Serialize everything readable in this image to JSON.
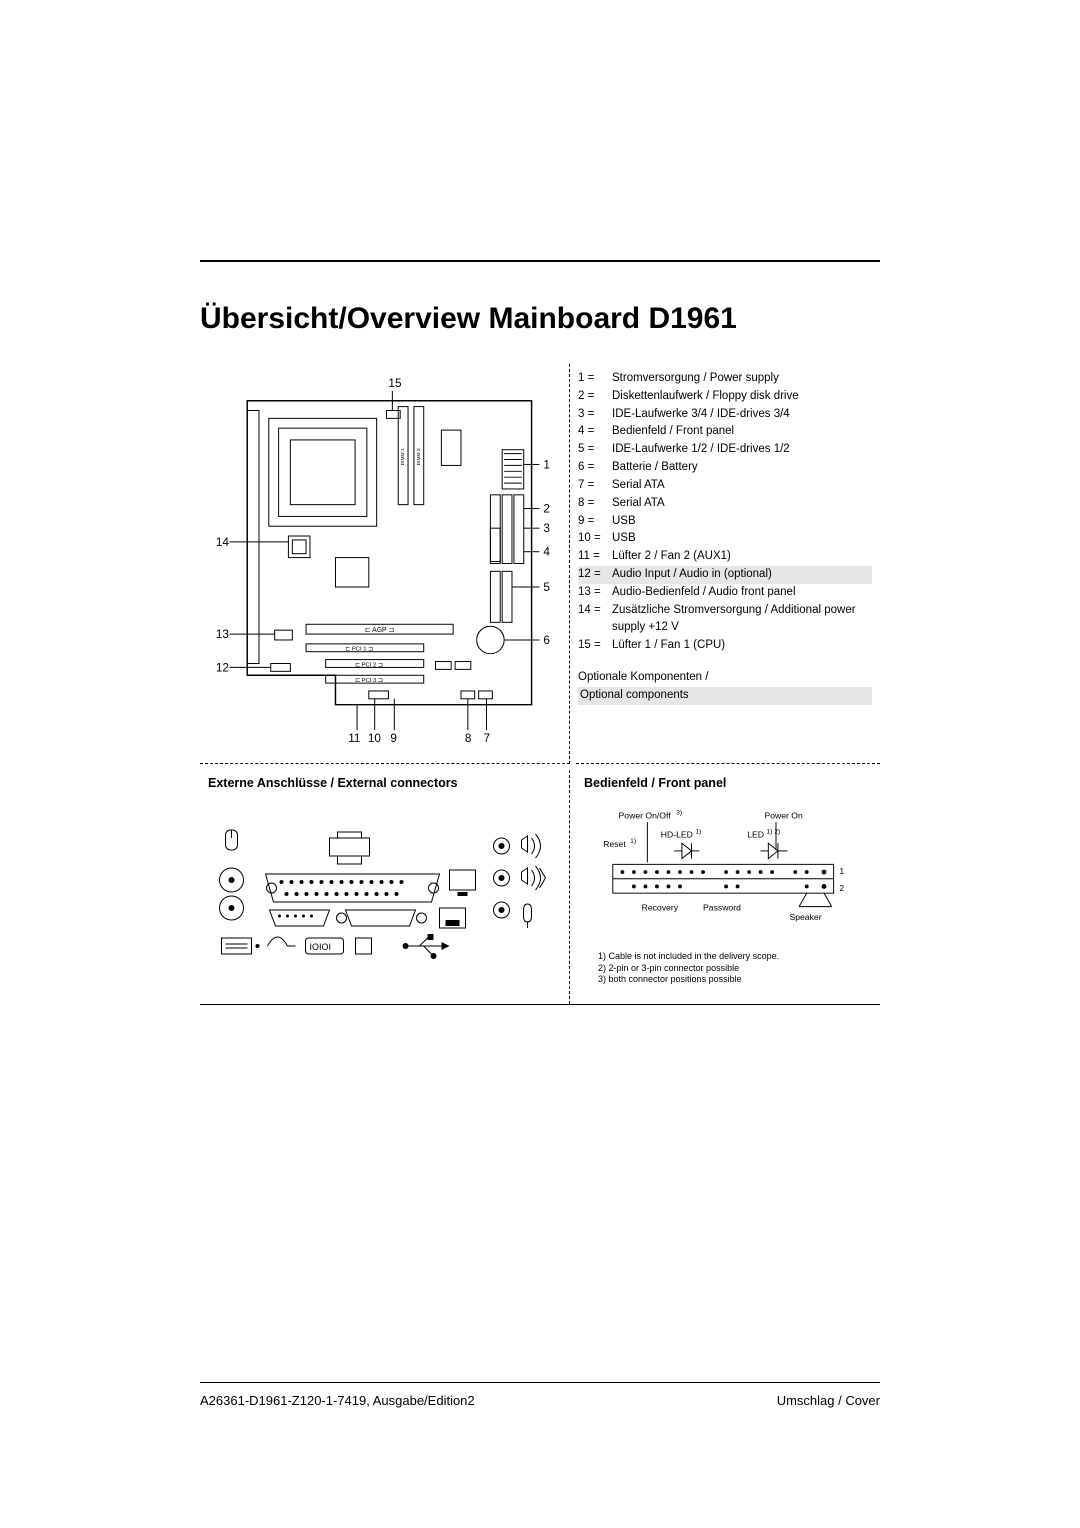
{
  "title": "Übersicht/Overview Mainboard D1961",
  "schematic": {
    "callouts_top": "15",
    "callouts_right": [
      "1",
      "2",
      "3",
      "4",
      "5",
      "6"
    ],
    "callouts_left": [
      "14",
      "13",
      "12"
    ],
    "callouts_bottom": [
      "11",
      "10",
      "9",
      "8",
      "7"
    ],
    "slot_labels": [
      "AGP",
      "PCI 1",
      "PCI 2",
      "PCI 3"
    ],
    "dimm_labels": [
      "D I M M 1",
      "D I M M 2"
    ]
  },
  "legend": [
    {
      "n": "1 =",
      "t": "Stromversorgung / Power supply"
    },
    {
      "n": "2 =",
      "t": "Diskettenlaufwerk / Floppy disk drive"
    },
    {
      "n": "3 =",
      "t": "IDE-Laufwerke 3/4 / IDE-drives 3/4"
    },
    {
      "n": "4 =",
      "t": "Bedienfeld / Front panel"
    },
    {
      "n": "5 =",
      "t": "IDE-Laufwerke 1/2 / IDE-drives 1/2"
    },
    {
      "n": "6 =",
      "t": "Batterie / Battery"
    },
    {
      "n": "7 =",
      "t": "Serial ATA"
    },
    {
      "n": "8 =",
      "t": "Serial ATA"
    },
    {
      "n": "9 =",
      "t": "USB"
    },
    {
      "n": "10 =",
      "t": "USB"
    },
    {
      "n": "11 =",
      "t": "Lüfter 2 / Fan 2 (AUX1)"
    },
    {
      "n": "12 =",
      "t": "Audio Input / Audio in (optional)",
      "shade": true
    },
    {
      "n": "13 =",
      "t": "Audio-Bedienfeld / Audio front panel"
    },
    {
      "n": "14 =",
      "t": "Zusätzliche Stromversorgung / Additional power supply +12 V"
    },
    {
      "n": "15 =",
      "t": "Lüfter 1 / Fan 1 (CPU)"
    }
  ],
  "optional": {
    "line1": "Optionale Komponenten /",
    "line2": "Optional components"
  },
  "external_head": "Externe Anschlüsse / External connectors",
  "frontpanel_head": "Bedienfeld / Front panel",
  "frontpanel": {
    "labels": {
      "poweronoff": "Power On/Off",
      "poweronoff_sup": "3)",
      "reset": "Reset",
      "reset_sup": "1)",
      "hdled": "HD-LED",
      "hdled_sup": "1)",
      "poweron": "Power On",
      "led": "LED",
      "led_sup": "1) 2)",
      "recovery": "Recovery",
      "password": "Password",
      "speaker": "Speaker",
      "row1": "1",
      "row2": "2"
    },
    "notes": [
      "1)  Cable is not included in the delivery scope.",
      "2)  2-pin or 3-pin connector possible",
      "3)  both connector positions possible"
    ]
  },
  "footer": {
    "left": "A26361-D1961-Z120-1-7419, Ausgabe/Edition2",
    "right": "Umschlag / Cover"
  },
  "style": {
    "page_bg": "#ffffff",
    "shade_bg": "#e6e6e6",
    "rule_color": "#000000",
    "title_fontsize": 30,
    "legend_fontsize": 11.5,
    "section_head_fontsize": 12.5,
    "footer_fontsize": 13,
    "notes_fontsize": 9
  }
}
